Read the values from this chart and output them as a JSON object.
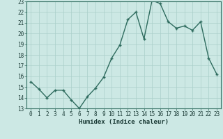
{
  "x": [
    0,
    1,
    2,
    3,
    4,
    5,
    6,
    7,
    8,
    9,
    10,
    11,
    12,
    13,
    14,
    15,
    16,
    17,
    18,
    19,
    20,
    21,
    22,
    23
  ],
  "y": [
    15.5,
    14.8,
    14.0,
    14.7,
    14.7,
    13.8,
    13.0,
    14.1,
    14.9,
    15.9,
    17.7,
    18.9,
    21.3,
    22.0,
    19.5,
    23.1,
    22.8,
    21.1,
    20.5,
    20.7,
    20.3,
    21.1,
    17.7,
    16.2
  ],
  "line_color": "#2e6b5e",
  "marker": "+",
  "marker_size": 3,
  "background_color": "#cce8e4",
  "grid_color": "#aacfca",
  "xlabel": "Humidex (Indice chaleur)",
  "ylim": [
    13,
    23
  ],
  "xlim_min": -0.5,
  "xlim_max": 23.5,
  "yticks": [
    13,
    14,
    15,
    16,
    17,
    18,
    19,
    20,
    21,
    22,
    23
  ],
  "xticks": [
    0,
    1,
    2,
    3,
    4,
    5,
    6,
    7,
    8,
    9,
    10,
    11,
    12,
    13,
    14,
    15,
    16,
    17,
    18,
    19,
    20,
    21,
    22,
    23
  ],
  "xtick_labels": [
    "0",
    "1",
    "2",
    "3",
    "4",
    "5",
    "6",
    "7",
    "8",
    "9",
    "10",
    "11",
    "12",
    "13",
    "14",
    "15",
    "16",
    "17",
    "18",
    "19",
    "20",
    "21",
    "22",
    "23"
  ],
  "tick_fontsize": 5.5,
  "xlabel_fontsize": 6.5,
  "line_width": 1.0,
  "font_family": "monospace"
}
